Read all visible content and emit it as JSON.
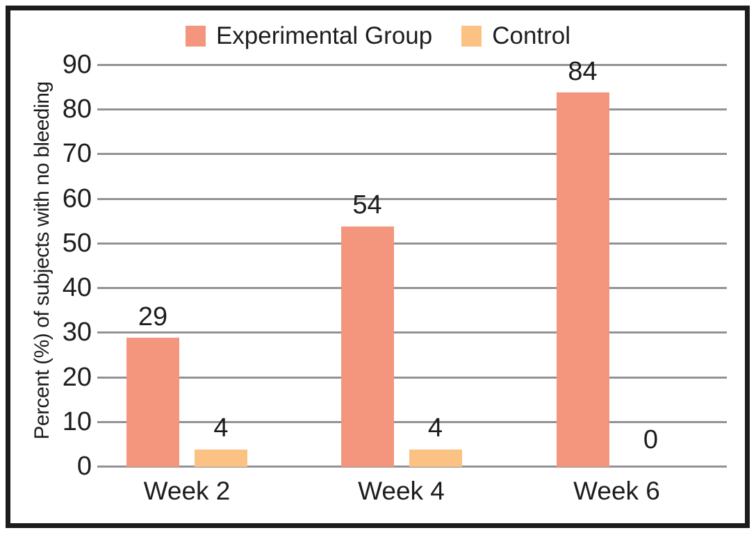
{
  "chart_data": {
    "type": "bar",
    "title": "",
    "categories": [
      "Week 2",
      "Week 4",
      "Week 6"
    ],
    "series": [
      {
        "name": "Experimental Group",
        "color": "#F3967D",
        "values": [
          29,
          54,
          84
        ]
      },
      {
        "name": "Control",
        "color": "#FBC283",
        "values": [
          4,
          4,
          0
        ]
      }
    ],
    "xlabel": "",
    "ylabel": "Percent (%) of subjects with no bleeding",
    "ylim": [
      0,
      90
    ],
    "ytick_step": 10,
    "yticks": [
      0,
      10,
      20,
      30,
      40,
      50,
      60,
      70,
      80,
      90
    ],
    "grid": "horizontal",
    "legend_position": "top-center",
    "bar_value_labels_shown": true,
    "colors": {
      "grid": "#929296",
      "text": "#1d1d20",
      "frame": "#1c1c1e",
      "background": "#ffffff"
    }
  }
}
